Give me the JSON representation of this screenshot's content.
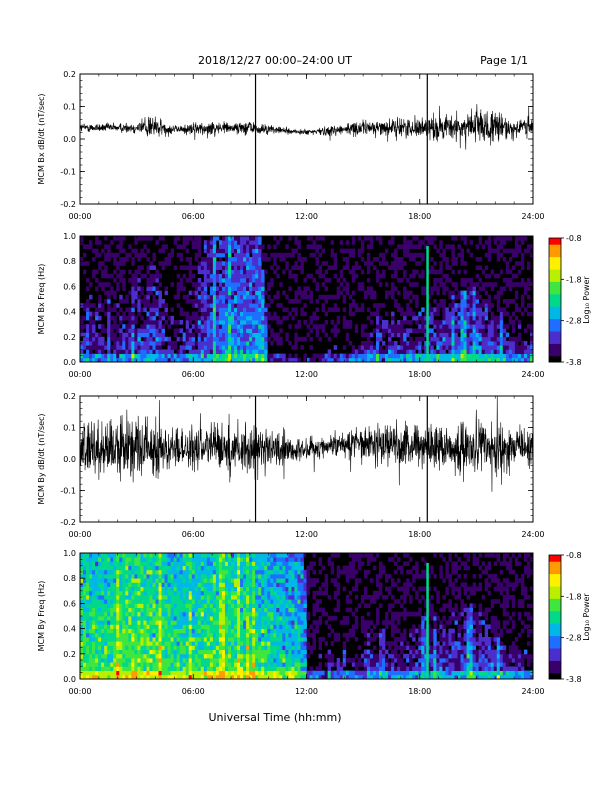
{
  "header": {
    "title": "2018/12/27   00:00–24:00 UT",
    "page": "Page 1/1"
  },
  "xlabel": "Universal Time (hh:mm)",
  "colors": {
    "trace": "#000000",
    "spectrogram_background": "#000000",
    "colormap": [
      "#000000",
      "#3a006a",
      "#4b2ecc",
      "#1e6fff",
      "#00b8e6",
      "#00d98a",
      "#3fe63f",
      "#b8f000",
      "#fff000",
      "#ff9b00",
      "#ff0000"
    ]
  },
  "chart_data": [
    {
      "id": "bx-waveform",
      "type": "line",
      "ylabel": "MCM Bx dB/dt (nT/sec)",
      "xlim": [
        0,
        24
      ],
      "ylim": [
        -0.2,
        0.2
      ],
      "yticks": [
        "0.2",
        "0.1",
        "0.0",
        "-0.1",
        "-0.2"
      ],
      "xticks": [
        "00:00",
        "06:00",
        "12:00",
        "18:00",
        "24:00"
      ],
      "grid": false,
      "series": [
        {
          "x": [
            0,
            1,
            2,
            3,
            3.8,
            4,
            5,
            6,
            7,
            8,
            9,
            9.3,
            10,
            11,
            12,
            13,
            14,
            15,
            16,
            17,
            18,
            18.5,
            19,
            20,
            21,
            21.5,
            22,
            23,
            24
          ],
          "baseline": [
            0.035,
            0.035,
            0.035,
            0.035,
            0.04,
            0.035,
            0.03,
            0.03,
            0.035,
            0.035,
            0.035,
            0.03,
            0.03,
            0.025,
            0.02,
            0.025,
            0.03,
            0.035,
            0.035,
            0.035,
            0.035,
            0.035,
            0.035,
            0.035,
            0.04,
            0.035,
            0.035,
            0.035,
            0.035
          ],
          "amplitude": [
            0.015,
            0.015,
            0.015,
            0.02,
            0.05,
            0.035,
            0.015,
            0.02,
            0.025,
            0.02,
            0.025,
            0.02,
            0.015,
            0.01,
            0.01,
            0.015,
            0.02,
            0.025,
            0.025,
            0.03,
            0.035,
            0.04,
            0.04,
            0.045,
            0.07,
            0.06,
            0.05,
            0.04,
            0.035
          ]
        }
      ],
      "annotations": [
        "vertical line near 09:30",
        "vertical line near 18:30"
      ]
    },
    {
      "id": "bx-spectrogram",
      "type": "heatmap",
      "ylabel": "MCM Bx Freq (Hz)",
      "colorbar_label": "Log₁₀ Power",
      "colorbar_ticks": [
        "-0.8",
        "-1.8",
        "-2.8",
        "-3.8"
      ],
      "clim": [
        -3.8,
        -0.8
      ],
      "xlim": [
        0,
        24
      ],
      "ylim": [
        0,
        1
      ],
      "yticks": [
        "1.0",
        "0.8",
        "0.6",
        "0.4",
        "0.2",
        "0.0"
      ],
      "xticks": [
        "00:00",
        "06:00",
        "12:00",
        "18:00",
        "24:00"
      ],
      "activity": {
        "x": [
          0,
          1,
          2,
          3,
          4,
          5,
          6,
          6.5,
          7,
          8,
          9,
          9.5,
          10,
          11,
          12,
          13,
          14,
          15,
          16,
          17,
          18,
          19,
          20,
          21,
          22,
          23,
          24
        ],
        "level": [
          -3.3,
          -3.3,
          -3.3,
          -3.2,
          -3.1,
          -3.4,
          -3.2,
          -3.0,
          -2.9,
          -2.8,
          -2.8,
          -2.6,
          -3.5,
          -3.6,
          -3.7,
          -3.6,
          -3.5,
          -3.3,
          -3.2,
          -3.2,
          -3.1,
          -3.1,
          -3.0,
          -2.9,
          -3.1,
          -3.2,
          -3.3
        ],
        "fmax": [
          0.5,
          0.5,
          0.5,
          0.6,
          0.8,
          0.4,
          0.6,
          0.9,
          1.0,
          1.0,
          1.0,
          1.0,
          0.1,
          0.05,
          0.05,
          0.1,
          0.2,
          0.3,
          0.35,
          0.4,
          0.45,
          0.45,
          0.5,
          0.55,
          0.35,
          0.3,
          0.25
        ]
      },
      "vertical_line": {
        "x": 18.4,
        "level": -2.2
      }
    },
    {
      "id": "by-waveform",
      "type": "line",
      "ylabel": "MCM By dB/dt (nT/sec)",
      "xlim": [
        0,
        24
      ],
      "ylim": [
        -0.2,
        0.2
      ],
      "yticks": [
        "0.2",
        "0.1",
        "0.0",
        "-0.1",
        "-0.2"
      ],
      "xticks": [
        "00:00",
        "06:00",
        "12:00",
        "18:00",
        "24:00"
      ],
      "grid": false,
      "series": [
        {
          "x": [
            0,
            1,
            2,
            3,
            4,
            5,
            6,
            7,
            8,
            9,
            10,
            11,
            12,
            13,
            14,
            15,
            16,
            17,
            18,
            19,
            20,
            21,
            22,
            23,
            24
          ],
          "baseline": [
            0.03,
            0.03,
            0.035,
            0.035,
            0.03,
            0.03,
            0.03,
            0.035,
            0.035,
            0.035,
            0.03,
            0.03,
            0.03,
            0.04,
            0.05,
            0.055,
            0.05,
            0.045,
            0.04,
            0.04,
            0.035,
            0.035,
            0.035,
            0.035,
            0.035
          ],
          "amplitude": [
            0.08,
            0.09,
            0.1,
            0.11,
            0.09,
            0.07,
            0.07,
            0.08,
            0.09,
            0.09,
            0.07,
            0.05,
            0.04,
            0.04,
            0.05,
            0.06,
            0.07,
            0.08,
            0.08,
            0.08,
            0.08,
            0.09,
            0.1,
            0.08,
            0.07
          ]
        }
      ],
      "annotations": [
        "vertical line near 09:30",
        "vertical line near 18:30"
      ]
    },
    {
      "id": "by-spectrogram",
      "type": "heatmap",
      "ylabel": "MCM By Freq (Hz)",
      "colorbar_label": "Log₁₀ Power",
      "colorbar_ticks": [
        "-0.8",
        "-1.8",
        "-2.8",
        "-3.8"
      ],
      "clim": [
        -3.8,
        -0.8
      ],
      "xlim": [
        0,
        24
      ],
      "ylim": [
        0,
        1
      ],
      "yticks": [
        "1.0",
        "0.8",
        "0.6",
        "0.4",
        "0.2",
        "0.0"
      ],
      "xticks": [
        "00:00",
        "06:00",
        "12:00",
        "18:00",
        "24:00"
      ],
      "activity": {
        "x": [
          0,
          1,
          2,
          3,
          4,
          5,
          6,
          7,
          8,
          9,
          10,
          11,
          11.9,
          12,
          13,
          14,
          15,
          16,
          17,
          18,
          19,
          20,
          21,
          22,
          23,
          24
        ],
        "level": [
          -2.0,
          -2.1,
          -2.0,
          -1.8,
          -2.0,
          -2.1,
          -2.1,
          -2.0,
          -2.0,
          -2.1,
          -2.2,
          -2.3,
          -2.4,
          -3.5,
          -3.5,
          -3.4,
          -3.3,
          -3.3,
          -3.2,
          -3.2,
          -3.1,
          -3.1,
          -3.0,
          -3.1,
          -3.2,
          -3.3
        ],
        "fmax": [
          1.0,
          1.0,
          1.0,
          1.0,
          1.0,
          1.0,
          1.0,
          1.0,
          1.0,
          1.0,
          1.0,
          1.0,
          1.0,
          0.1,
          0.2,
          0.25,
          0.3,
          0.35,
          0.4,
          0.45,
          0.45,
          0.5,
          0.55,
          0.35,
          0.3,
          0.25
        ]
      },
      "vertical_line": {
        "x": 18.4,
        "level": -2.2
      }
    }
  ]
}
